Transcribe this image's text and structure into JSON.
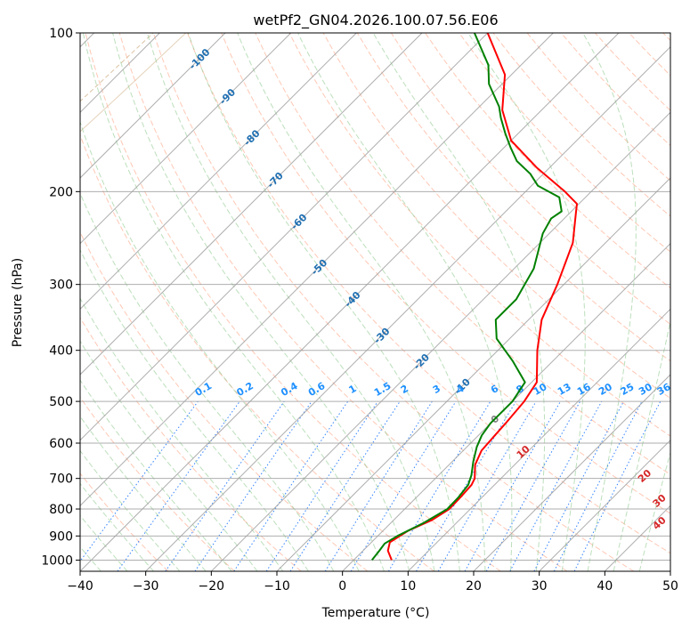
{
  "chart_data": {
    "type": "line",
    "diagram": "skew-T log-P",
    "title": "wetPf2_GN04.2026.100.07.56.E06",
    "xlabel": "Temperature (°C)",
    "ylabel": "Pressure (hPa)",
    "xlim": [
      -40,
      50
    ],
    "ylim": [
      1050,
      100
    ],
    "xticks": [
      "−40",
      "−30",
      "−20",
      "−10",
      "0",
      "10",
      "20",
      "30",
      "40",
      "50"
    ],
    "yticks": [
      {
        "p": 100,
        "label": "100"
      },
      {
        "p": 200,
        "label": "200"
      },
      {
        "p": 300,
        "label": "300"
      },
      {
        "p": 400,
        "label": "400"
      },
      {
        "p": 500,
        "label": "500"
      },
      {
        "p": 600,
        "label": "600"
      },
      {
        "p": 700,
        "label": "700"
      },
      {
        "p": 800,
        "label": "800"
      },
      {
        "p": 900,
        "label": "900"
      },
      {
        "p": 1000,
        "label": "1000"
      }
    ],
    "grid": true,
    "colors": {
      "temperature": "#ff0000",
      "dewpoint": "#008000",
      "isotherm": "#a0a0a0",
      "dry_adiabat": "#ff9a78",
      "moist_adiabat": "#8fc98f",
      "mixing_ratio": "#1f77ff",
      "background_curve": "#d2b48c",
      "isotherm_label": "#1f6fb2",
      "mixing_label": "#1e90ff",
      "dry_label": "#d62728",
      "zero_label": "#808080"
    },
    "series": [
      {
        "name": "Temperature",
        "color": "#ff0000",
        "points": [
          [
            5.8,
            1000
          ],
          [
            3.8,
            960
          ],
          [
            2.8,
            925
          ],
          [
            3.8,
            880
          ],
          [
            5.8,
            840
          ],
          [
            6.8,
            800
          ],
          [
            6.7,
            760
          ],
          [
            6.5,
            720
          ],
          [
            6.0,
            700
          ],
          [
            4.0,
            660
          ],
          [
            2.8,
            620
          ],
          [
            2.5,
            580
          ],
          [
            2.3,
            550
          ],
          [
            1.8,
            500
          ],
          [
            0.8,
            460
          ],
          [
            -4,
            400
          ],
          [
            -8,
            350
          ],
          [
            -11,
            300
          ],
          [
            -15,
            250
          ],
          [
            -19,
            220
          ],
          [
            -20.3,
            211
          ],
          [
            -24,
            200
          ],
          [
            -32,
            180
          ],
          [
            -40,
            160
          ],
          [
            -46,
            140
          ],
          [
            -51,
            120
          ],
          [
            -60,
            100
          ]
        ]
      },
      {
        "name": "Dewpoint",
        "color": "#008000",
        "points": [
          [
            2.8,
            1000
          ],
          [
            2.5,
            960
          ],
          [
            2.2,
            930
          ],
          [
            3.0,
            900
          ],
          [
            5.0,
            850
          ],
          [
            6.5,
            800
          ],
          [
            6.4,
            760
          ],
          [
            6.0,
            720
          ],
          [
            5.0,
            690
          ],
          [
            3.2,
            650
          ],
          [
            1.5,
            610
          ],
          [
            0.5,
            580
          ],
          [
            0.0,
            550
          ],
          [
            0.0,
            500
          ],
          [
            -1.0,
            460
          ],
          [
            -6,
            420
          ],
          [
            -12,
            380
          ],
          [
            -15,
            350
          ],
          [
            -15,
            320
          ],
          [
            -17,
            280
          ],
          [
            -21,
            240
          ],
          [
            -22,
            225
          ],
          [
            -21.5,
            218
          ],
          [
            -24,
            205
          ],
          [
            -29,
            195
          ],
          [
            -32,
            185
          ],
          [
            -36,
            175
          ],
          [
            -39,
            165
          ],
          [
            -42,
            155
          ],
          [
            -45,
            145
          ],
          [
            -47,
            138
          ],
          [
            -52,
            125
          ],
          [
            -55,
            115
          ],
          [
            -62,
            100
          ]
        ]
      }
    ],
    "isotherm_labels": [
      "-100",
      "-90",
      "-80",
      "-70",
      "-60",
      "-50",
      "-40",
      "-30",
      "-20",
      "-10",
      "0"
    ],
    "mixing_ratio_labels": [
      "0.1",
      "0.2",
      "0.4",
      "0.6",
      "1",
      "1.5",
      "2",
      "3",
      "4",
      "6",
      "8",
      "10",
      "13",
      "16",
      "20",
      "25",
      "30",
      "36"
    ],
    "dry_adiabat_labels": [
      "10",
      "20",
      "30",
      "40"
    ]
  }
}
